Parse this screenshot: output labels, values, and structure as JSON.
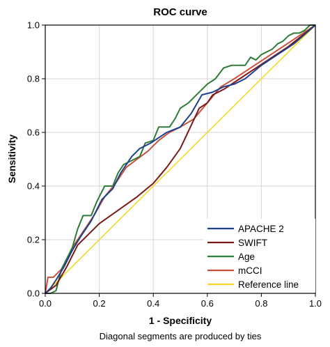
{
  "chart_data": {
    "type": "line",
    "title": "ROC curve",
    "xlabel": "1 - Specificity",
    "ylabel": "Sensitivity",
    "xlim": [
      0,
      1
    ],
    "ylim": [
      0,
      1
    ],
    "xticks": [
      "0.0",
      "0.2",
      "0.4",
      "0.6",
      "0.8",
      "1.0"
    ],
    "yticks": [
      "0.0",
      "0.2",
      "0.4",
      "0.6",
      "0.8",
      "1.0"
    ],
    "grid": true,
    "legend_position": "bottom-right",
    "footnote": "Diagonal segments are produced by ties",
    "series": [
      {
        "name": "APACHE 2",
        "color": "#1f3f8a",
        "points": [
          [
            0,
            0
          ],
          [
            0.02,
            0.02
          ],
          [
            0.04,
            0.05
          ],
          [
            0.07,
            0.1
          ],
          [
            0.1,
            0.16
          ],
          [
            0.13,
            0.21
          ],
          [
            0.17,
            0.27
          ],
          [
            0.21,
            0.35
          ],
          [
            0.25,
            0.39
          ],
          [
            0.28,
            0.45
          ],
          [
            0.32,
            0.51
          ],
          [
            0.35,
            0.54
          ],
          [
            0.39,
            0.56
          ],
          [
            0.42,
            0.58
          ],
          [
            0.45,
            0.6
          ],
          [
            0.5,
            0.62
          ],
          [
            0.54,
            0.67
          ],
          [
            0.58,
            0.74
          ],
          [
            0.62,
            0.75
          ],
          [
            0.66,
            0.77
          ],
          [
            0.7,
            0.78
          ],
          [
            0.74,
            0.8
          ],
          [
            0.8,
            0.85
          ],
          [
            0.86,
            0.89
          ],
          [
            0.92,
            0.93
          ],
          [
            1,
            1
          ]
        ]
      },
      {
        "name": "SWIFT",
        "color": "#7a1818",
        "points": [
          [
            0,
            0
          ],
          [
            0.04,
            0.03
          ],
          [
            0.08,
            0.1
          ],
          [
            0.12,
            0.18
          ],
          [
            0.16,
            0.22
          ],
          [
            0.2,
            0.26
          ],
          [
            0.27,
            0.31
          ],
          [
            0.34,
            0.36
          ],
          [
            0.4,
            0.41
          ],
          [
            0.45,
            0.47
          ],
          [
            0.5,
            0.54
          ],
          [
            0.57,
            0.69
          ],
          [
            0.6,
            0.71
          ],
          [
            0.62,
            0.74
          ],
          [
            0.66,
            0.76
          ],
          [
            0.72,
            0.8
          ],
          [
            0.78,
            0.84
          ],
          [
            0.84,
            0.88
          ],
          [
            0.9,
            0.92
          ],
          [
            0.95,
            0.96
          ],
          [
            1,
            1
          ]
        ]
      },
      {
        "name": "Age",
        "color": "#2e7a36",
        "points": [
          [
            0,
            0
          ],
          [
            0.02,
            0
          ],
          [
            0.04,
            0.01
          ],
          [
            0.045,
            0.03
          ],
          [
            0.06,
            0.09
          ],
          [
            0.08,
            0.13
          ],
          [
            0.1,
            0.17
          ],
          [
            0.12,
            0.24
          ],
          [
            0.14,
            0.29
          ],
          [
            0.17,
            0.29
          ],
          [
            0.19,
            0.34
          ],
          [
            0.2,
            0.36
          ],
          [
            0.22,
            0.4
          ],
          [
            0.25,
            0.4
          ],
          [
            0.27,
            0.45
          ],
          [
            0.29,
            0.48
          ],
          [
            0.31,
            0.49
          ],
          [
            0.33,
            0.5
          ],
          [
            0.35,
            0.51
          ],
          [
            0.37,
            0.56
          ],
          [
            0.4,
            0.57
          ],
          [
            0.42,
            0.62
          ],
          [
            0.46,
            0.62
          ],
          [
            0.48,
            0.65
          ],
          [
            0.5,
            0.69
          ],
          [
            0.53,
            0.71
          ],
          [
            0.56,
            0.74
          ],
          [
            0.58,
            0.76
          ],
          [
            0.6,
            0.78
          ],
          [
            0.63,
            0.8
          ],
          [
            0.66,
            0.84
          ],
          [
            0.69,
            0.85
          ],
          [
            0.72,
            0.85
          ],
          [
            0.74,
            0.85
          ],
          [
            0.76,
            0.88
          ],
          [
            0.78,
            0.87
          ],
          [
            0.8,
            0.89
          ],
          [
            0.82,
            0.9
          ],
          [
            0.84,
            0.91
          ],
          [
            0.86,
            0.93
          ],
          [
            0.88,
            0.94
          ],
          [
            0.9,
            0.96
          ],
          [
            0.92,
            0.97
          ],
          [
            0.94,
            0.97
          ],
          [
            0.96,
            0.98
          ],
          [
            0.98,
            1
          ],
          [
            1,
            1
          ]
        ]
      },
      {
        "name": "mCCI",
        "color": "#c8503a",
        "points": [
          [
            0,
            0
          ],
          [
            0.01,
            0.06
          ],
          [
            0.03,
            0.06
          ],
          [
            0.05,
            0.08
          ],
          [
            0.07,
            0.1
          ],
          [
            0.1,
            0.17
          ],
          [
            0.14,
            0.23
          ],
          [
            0.18,
            0.29
          ],
          [
            0.22,
            0.36
          ],
          [
            0.26,
            0.41
          ],
          [
            0.3,
            0.47
          ],
          [
            0.34,
            0.5
          ],
          [
            0.38,
            0.53
          ],
          [
            0.42,
            0.57
          ],
          [
            0.46,
            0.6
          ],
          [
            0.5,
            0.62
          ],
          [
            0.55,
            0.65
          ],
          [
            0.6,
            0.71
          ],
          [
            0.65,
            0.77
          ],
          [
            0.7,
            0.8
          ],
          [
            0.76,
            0.84
          ],
          [
            0.82,
            0.88
          ],
          [
            0.88,
            0.92
          ],
          [
            0.94,
            0.96
          ],
          [
            1,
            1
          ]
        ]
      },
      {
        "name": "Reference line",
        "color": "#f2d92a",
        "points": [
          [
            0,
            0
          ],
          [
            1,
            1
          ]
        ]
      }
    ]
  }
}
